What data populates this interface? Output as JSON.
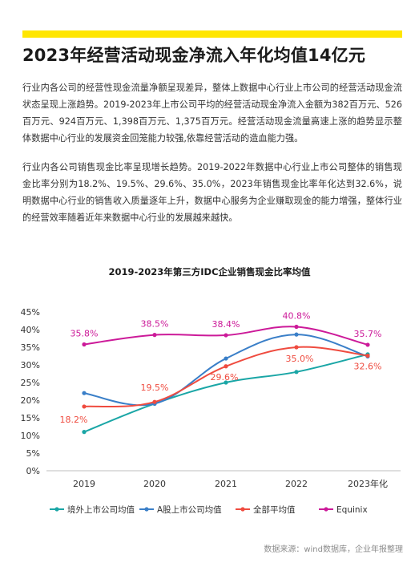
{
  "header": {
    "title": "2023年经营活动现金净流入年化均值14亿元"
  },
  "body": {
    "paragraph1": "行业内各公司的经营性现金流量净额呈现差异，整体上数据中心行业上市公司的经营活动现金流状态呈现上涨趋势。2019-2023年上市公司平均的经营活动现金净流入金额为382百万元、526百万元、924百万元、1,398百万元、1,375百万元。经营活动现金流量高速上涨的趋势显示整体数据中心行业的发展资金回笼能力较强,依靠经营活动的造血能力强。",
    "paragraph2": "行业内各公司销售现金比率呈现增长趋势。2019-2022年数据中心行业上市公司整体的销售现金比率分别为18.2%、19.5%、29.6%、35.0%，2023年销售现金比率年化达到32.6%，说明数据中心行业的销售收入质量逐年上升，数据中心服务为企业赚取现金的能力增强，整体行业的经营效率随着近年来数据中心行业的发展越来越快。"
  },
  "chart_data": {
    "type": "line",
    "title": "2019-2023年第三方IDC企业销售现金比率均值",
    "categories": [
      "2019",
      "2020",
      "2021",
      "2022",
      "2023年化"
    ],
    "yticks": [
      "0%",
      "5%",
      "10%",
      "15%",
      "20%",
      "25%",
      "30%",
      "35%",
      "40%",
      "45%"
    ],
    "ylim": [
      0,
      45
    ],
    "grid": false,
    "legend_position": "bottom",
    "series": [
      {
        "name": "境外上市公司均值",
        "color": "#1aa6a6",
        "values": [
          11.0,
          19.0,
          25.0,
          28.0,
          33.0
        ]
      },
      {
        "name": "A股上市公司均值",
        "color": "#3a7fc8",
        "values": [
          22.0,
          19.0,
          31.8,
          38.6,
          32.4
        ]
      },
      {
        "name": "全部平均值",
        "color": "#ef4b3f",
        "values": [
          18.2,
          19.5,
          29.6,
          35.0,
          32.6
        ]
      },
      {
        "name": "Equinix",
        "color": "#cc1a99",
        "values": [
          35.8,
          38.5,
          38.4,
          40.8,
          35.7
        ]
      }
    ],
    "data_labels": {
      "全部平均值": [
        "18.2%",
        "19.5%",
        "29.6%",
        "35.0%",
        "32.6%"
      ],
      "Equinix": [
        "35.8%",
        "38.5%",
        "38.4%",
        "40.8%",
        "35.7%"
      ]
    }
  },
  "footer": {
    "source": "数据来源：wind数据库，企业年报整理"
  }
}
